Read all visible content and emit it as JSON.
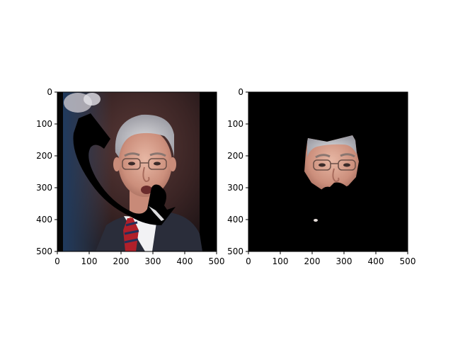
{
  "chart_data": [
    {
      "type": "image",
      "title": "",
      "xlabel": "",
      "ylabel": "",
      "xlim": [
        0,
        500
      ],
      "ylim": [
        500,
        0
      ],
      "xticks": [
        "0",
        "100",
        "200",
        "300",
        "400",
        "500"
      ],
      "yticks": [
        "0",
        "100",
        "200",
        "300",
        "400",
        "500"
      ],
      "content": "photo of man in suit with black occlusion mask shaped like a phone handset"
    },
    {
      "type": "image",
      "title": "",
      "xlabel": "",
      "ylabel": "",
      "xlim": [
        0,
        500
      ],
      "ylim": [
        500,
        0
      ],
      "xticks": [
        "0",
        "100",
        "200",
        "300",
        "400",
        "500"
      ],
      "yticks": [
        "0",
        "100",
        "200",
        "300",
        "400",
        "500"
      ],
      "content": "segmented face region on black background"
    }
  ],
  "colors": {
    "background": "#ffffff",
    "axis": "#000000",
    "mask": "#000000"
  }
}
